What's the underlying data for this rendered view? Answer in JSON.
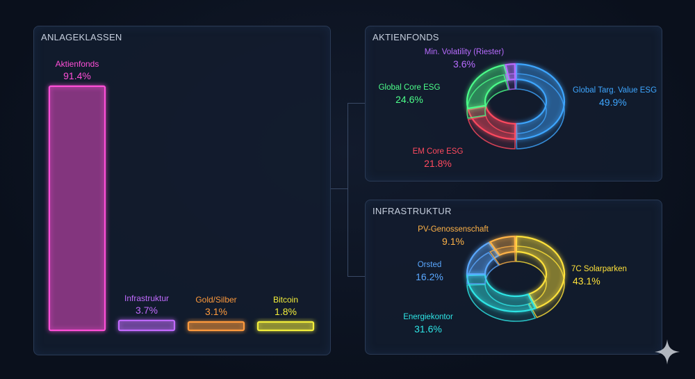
{
  "colors": {
    "magenta": "#ff4fd8",
    "purple": "#c26bff",
    "orange": "#ff9a3c",
    "yellow": "#f3ee3a",
    "blue": "#3ea6ff",
    "red": "#ff4a5f",
    "green": "#4cff8a",
    "violet": "#b86cff",
    "cyan": "#2ee6e6",
    "light_blue": "#5aa8ff",
    "amber": "#ffb347",
    "gold": "#ffe23a"
  },
  "panels": {
    "classes_title": "ANLAGEKLASSEN",
    "aktien_title": "AKTIENFONDS",
    "infra_title": "INFRASTRUKTUR"
  },
  "chart_data": [
    {
      "type": "bar",
      "title": "ANLAGEKLASSEN",
      "categories": [
        "Aktienfonds",
        "Infrastruktur",
        "Gold/Silber",
        "Bitcoin"
      ],
      "values": [
        91.4,
        3.7,
        3.1,
        1.8
      ],
      "labels": [
        "91.4%",
        "3.7%",
        "3.1%",
        "1.8%"
      ],
      "colors": [
        "#ff4fd8",
        "#c26bff",
        "#ff9a3c",
        "#f3ee3a"
      ],
      "ylim": [
        0,
        91.4
      ],
      "grid": false
    },
    {
      "type": "pie",
      "title": "AKTIENFONDS",
      "slices": [
        {
          "label": "Global Targ. Value ESG",
          "value": 49.9,
          "text": "49.9%",
          "color": "#3ea6ff"
        },
        {
          "label": "EM Core ESG",
          "value": 21.8,
          "text": "21.8%",
          "color": "#ff4a5f"
        },
        {
          "label": "Global Core ESG",
          "value": 24.6,
          "text": "24.6%",
          "color": "#4cff8a"
        },
        {
          "label": "Min. Volatility (Riester)",
          "value": 3.6,
          "text": "3.6%",
          "color": "#b86cff"
        }
      ]
    },
    {
      "type": "pie",
      "title": "INFRASTRUKTUR",
      "slices": [
        {
          "label": "7C Solarparken",
          "value": 43.1,
          "text": "43.1%",
          "color": "#ffe23a"
        },
        {
          "label": "Energiekontor",
          "value": 31.6,
          "text": "31.6%",
          "color": "#2ee6e6"
        },
        {
          "label": "Orsted",
          "value": 16.2,
          "text": "16.2%",
          "color": "#5aa8ff"
        },
        {
          "label": "PV-Genossenschaft",
          "value": 9.1,
          "text": "9.1%",
          "color": "#ffb347"
        }
      ]
    }
  ]
}
